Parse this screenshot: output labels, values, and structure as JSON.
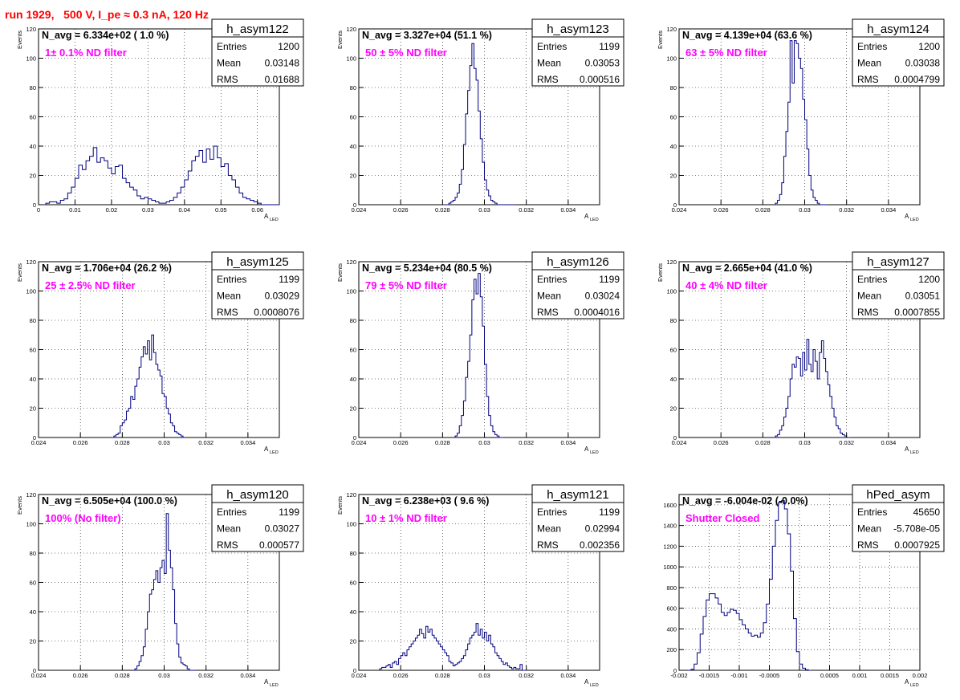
{
  "header": {
    "title": "run 1929,   500 V, I_pe ≈ 0.3 nA, 120 Hz"
  },
  "colors": {
    "histogram": "#000080",
    "annotation": "#ff00ff",
    "title": "#ff0000",
    "grid": "#000000"
  },
  "chart_data": [
    {
      "type": "histogram",
      "name": "h_asym122",
      "summary": "N_avg = 6.334e+02 ( 1.0 %)",
      "annotation": "1± 0.1% ND filter",
      "stats": {
        "Entries": "1200",
        "Mean": "0.03148",
        "RMS": "0.01688"
      },
      "xlabel": "A",
      "xlabel_sub": "LED",
      "ylabel": "Events",
      "xlim": [
        0,
        0.066
      ],
      "ylim": [
        0,
        120
      ],
      "xticks": [
        0,
        0.01,
        0.02,
        0.03,
        0.04,
        0.05,
        0.06
      ],
      "xtick_labels": [
        "0",
        "0.01",
        "0.02",
        "0.03",
        "0.04",
        "0.05",
        "0.06"
      ],
      "yticks": [
        0,
        20,
        40,
        60,
        80,
        100,
        120
      ],
      "bins": {
        "start": 0,
        "width": 0.001,
        "values": [
          0,
          0,
          1,
          2,
          2,
          1,
          3,
          4,
          8,
          12,
          18,
          27,
          24,
          30,
          33,
          39,
          29,
          32,
          30,
          25,
          21,
          26,
          27,
          18,
          15,
          12,
          10,
          6,
          4,
          5,
          4,
          3,
          2,
          1,
          1,
          2,
          3,
          5,
          8,
          12,
          17,
          23,
          30,
          33,
          37,
          29,
          38,
          31,
          40,
          32,
          26,
          28,
          20,
          17,
          12,
          8,
          5,
          4,
          3,
          2,
          1,
          0,
          0,
          0,
          0,
          0
        ]
      },
      "xtick_format": "pct"
    },
    {
      "type": "histogram",
      "name": "h_asym123",
      "summary": "N_avg = 3.327e+04 (51.1 %)",
      "annotation": "50 ± 5% ND filter",
      "stats": {
        "Entries": "1199",
        "Mean": "0.03053",
        "RMS": "0.000516"
      },
      "xlabel": "A",
      "xlabel_sub": "LED",
      "ylabel": "Events",
      "xlim": [
        0.024,
        0.0355
      ],
      "ylim": [
        0,
        120
      ],
      "xticks": [
        0.024,
        0.026,
        0.028,
        0.03,
        0.032,
        0.034
      ],
      "xtick_labels": [
        "0.024",
        "0.026",
        "0.028",
        "0.03",
        "0.032",
        "0.034"
      ],
      "yticks": [
        0,
        20,
        40,
        60,
        80,
        100,
        120
      ],
      "bins": {
        "start": 0.028,
        "width": 0.0001,
        "values": [
          0,
          0,
          0,
          1,
          2,
          3,
          5,
          8,
          14,
          24,
          41,
          62,
          78,
          95,
          110,
          93,
          85,
          64,
          45,
          29,
          17,
          10,
          6,
          3,
          2,
          1,
          0,
          0,
          0,
          0,
          0,
          0,
          0,
          0,
          0
        ]
      }
    },
    {
      "type": "histogram",
      "name": "h_asym124",
      "summary": "N_avg = 4.139e+04 (63.6 %)",
      "annotation": "63 ± 5% ND filter",
      "stats": {
        "Entries": "1200",
        "Mean": "0.03038",
        "RMS": "0.0004799"
      },
      "xlabel": "A",
      "xlabel_sub": "LED",
      "ylabel": "Events",
      "xlim": [
        0.024,
        0.0355
      ],
      "ylim": [
        0,
        120
      ],
      "xticks": [
        0.024,
        0.026,
        0.028,
        0.03,
        0.032,
        0.034
      ],
      "xtick_labels": [
        "0.024",
        "0.026",
        "0.028",
        "0.03",
        "0.032",
        "0.034"
      ],
      "yticks": [
        0,
        20,
        40,
        60,
        80,
        100,
        120
      ],
      "bins": {
        "start": 0.0285,
        "width": 0.0001,
        "values": [
          0,
          1,
          3,
          7,
          15,
          33,
          50,
          70,
          112,
          83,
          112,
          110,
          100,
          93,
          72,
          58,
          38,
          20,
          10,
          5,
          3,
          1,
          0,
          0,
          0,
          0
        ]
      }
    },
    {
      "type": "histogram",
      "name": "h_asym125",
      "summary": "N_avg = 1.706e+04 (26.2 %)",
      "annotation": "25 ± 2.5% ND filter",
      "stats": {
        "Entries": "1199",
        "Mean": "0.03029",
        "RMS": "0.0008076"
      },
      "xlabel": "A",
      "xlabel_sub": "LED",
      "ylabel": "Events",
      "xlim": [
        0.024,
        0.0355
      ],
      "ylim": [
        0,
        120
      ],
      "xticks": [
        0.024,
        0.026,
        0.028,
        0.03,
        0.032,
        0.034
      ],
      "xtick_labels": [
        "0.024",
        "0.026",
        "0.028",
        "0.03",
        "0.032",
        "0.034"
      ],
      "yticks": [
        0,
        20,
        40,
        60,
        80,
        100,
        120
      ],
      "bins": {
        "start": 0.0275,
        "width": 0.0001,
        "values": [
          0,
          1,
          2,
          3,
          8,
          10,
          12,
          18,
          20,
          28,
          26,
          35,
          40,
          48,
          55,
          62,
          57,
          66,
          53,
          70,
          58,
          50,
          46,
          42,
          30,
          28,
          20,
          16,
          10,
          8,
          4,
          3,
          2,
          1,
          0
        ]
      }
    },
    {
      "type": "histogram",
      "name": "h_asym126",
      "summary": "N_avg = 5.234e+04 (80.5 %)",
      "annotation": "79 ± 5% ND filter",
      "stats": {
        "Entries": "1199",
        "Mean": "0.03024",
        "RMS": "0.0004016"
      },
      "xlabel": "A",
      "xlabel_sub": "LED",
      "ylabel": "Events",
      "xlim": [
        0.024,
        0.0355
      ],
      "ylim": [
        0,
        120
      ],
      "xticks": [
        0.024,
        0.026,
        0.028,
        0.03,
        0.032,
        0.034
      ],
      "xtick_labels": [
        "0.024",
        "0.026",
        "0.028",
        "0.03",
        "0.032",
        "0.034"
      ],
      "yticks": [
        0,
        20,
        40,
        60,
        80,
        100,
        120
      ],
      "bins": {
        "start": 0.0285,
        "width": 0.0001,
        "values": [
          0,
          1,
          3,
          8,
          15,
          25,
          41,
          52,
          70,
          94,
          108,
          98,
          112,
          96,
          76,
          50,
          28,
          15,
          8,
          4,
          2,
          1,
          0,
          0
        ]
      }
    },
    {
      "type": "histogram",
      "name": "h_asym127",
      "summary": "N_avg = 2.665e+04 (41.0 %)",
      "annotation": "40 ± 4% ND filter",
      "stats": {
        "Entries": "1200",
        "Mean": "0.03051",
        "RMS": "0.0007855"
      },
      "xlabel": "A",
      "xlabel_sub": "LED",
      "ylabel": "Events",
      "xlim": [
        0.024,
        0.0355
      ],
      "ylim": [
        0,
        120
      ],
      "xticks": [
        0.024,
        0.026,
        0.028,
        0.03,
        0.032,
        0.034
      ],
      "xtick_labels": [
        "0.024",
        "0.026",
        "0.028",
        "0.03",
        "0.032",
        "0.034"
      ],
      "yticks": [
        0,
        20,
        40,
        60,
        80,
        100,
        120
      ],
      "bins": {
        "start": 0.0285,
        "width": 0.0001,
        "values": [
          0,
          1,
          2,
          5,
          8,
          14,
          20,
          28,
          40,
          50,
          48,
          55,
          54,
          42,
          58,
          46,
          67,
          50,
          45,
          60,
          52,
          40,
          58,
          66,
          54,
          45,
          36,
          28,
          20,
          14,
          8,
          6,
          3,
          2,
          1,
          0,
          0
        ]
      }
    },
    {
      "type": "histogram",
      "name": "h_asym120",
      "summary": "N_avg = 6.505e+04 (100.0 %)",
      "annotation": "100% (No filter)",
      "stats": {
        "Entries": "1199",
        "Mean": "0.03027",
        "RMS": "0.000577"
      },
      "xlabel": "A",
      "xlabel_sub": "LED",
      "ylabel": "Events",
      "xlim": [
        0.024,
        0.0355
      ],
      "ylim": [
        0,
        120
      ],
      "xticks": [
        0.024,
        0.026,
        0.028,
        0.03,
        0.032,
        0.034
      ],
      "xtick_labels": [
        "0.024",
        "0.026",
        "0.028",
        "0.03",
        "0.032",
        "0.034"
      ],
      "yticks": [
        0,
        20,
        40,
        60,
        80,
        100,
        120
      ],
      "bins": {
        "start": 0.0285,
        "width": 0.0001,
        "values": [
          0,
          1,
          3,
          6,
          10,
          16,
          28,
          40,
          52,
          55,
          62,
          68,
          60,
          70,
          75,
          66,
          107,
          82,
          70,
          55,
          32,
          18,
          9,
          5,
          4,
          3,
          1,
          0,
          0,
          0
        ]
      }
    },
    {
      "type": "histogram",
      "name": "h_asym121",
      "summary": "N_avg = 6.238e+03 ( 9.6 %)",
      "annotation": "10 ± 1% ND filter",
      "stats": {
        "Entries": "1199",
        "Mean": "0.02994",
        "RMS": "0.002356"
      },
      "xlabel": "A",
      "xlabel_sub": "LED",
      "ylabel": "Events",
      "xlim": [
        0.024,
        0.0355
      ],
      "ylim": [
        0,
        120
      ],
      "xticks": [
        0.024,
        0.026,
        0.028,
        0.03,
        0.032,
        0.034
      ],
      "xtick_labels": [
        "0.024",
        "0.026",
        "0.028",
        "0.03",
        "0.032",
        "0.034"
      ],
      "yticks": [
        0,
        20,
        40,
        60,
        80,
        100,
        120
      ],
      "bins": {
        "start": 0.025,
        "width": 0.0001,
        "values": [
          1,
          2,
          2,
          3,
          4,
          2,
          5,
          6,
          4,
          8,
          10,
          12,
          10,
          14,
          16,
          18,
          20,
          22,
          24,
          28,
          25,
          22,
          30,
          26,
          28,
          24,
          22,
          20,
          18,
          16,
          14,
          12,
          10,
          6,
          5,
          3,
          4,
          5,
          6,
          8,
          10,
          14,
          18,
          22,
          24,
          26,
          32,
          24,
          28,
          22,
          26,
          20,
          24,
          18,
          16,
          12,
          10,
          8,
          6,
          4,
          5,
          3,
          2,
          1,
          2,
          1,
          1,
          4,
          0,
          0
        ]
      }
    },
    {
      "type": "histogram",
      "name": "hPed_asym",
      "summary": "N_avg = -6.004e-02 (-0.0%)",
      "annotation": "Shutter Closed",
      "stats": {
        "Entries": "45650",
        "Mean": "-5.708e-05",
        "RMS": "0.0007925"
      },
      "xlabel": "A",
      "xlabel_sub": "LED",
      "ylabel": "",
      "xlim": [
        -0.002,
        0.002
      ],
      "ylim": [
        0,
        1700
      ],
      "xticks": [
        -0.002,
        -0.0015,
        -0.001,
        -0.0005,
        0,
        0.0005,
        0.001,
        0.0015,
        0.002
      ],
      "xtick_labels": [
        "-0.002",
        "-0.0015",
        "-0.001",
        "-0.0005",
        "0",
        "0.0005",
        "0.001",
        "0.0015",
        "0.002"
      ],
      "yticks": [
        0,
        200,
        400,
        600,
        800,
        1000,
        1200,
        1400,
        1600
      ],
      "bins": {
        "start": -0.00185,
        "width": 5e-05,
        "values": [
          0,
          10,
          60,
          170,
          350,
          520,
          680,
          740,
          740,
          700,
          640,
          560,
          530,
          560,
          590,
          580,
          550,
          490,
          440,
          400,
          360,
          330,
          340,
          320,
          360,
          460,
          640,
          880,
          1200,
          1450,
          1620,
          1640,
          1560,
          1320,
          960,
          500,
          180,
          60,
          20,
          5,
          0
        ]
      }
    }
  ]
}
